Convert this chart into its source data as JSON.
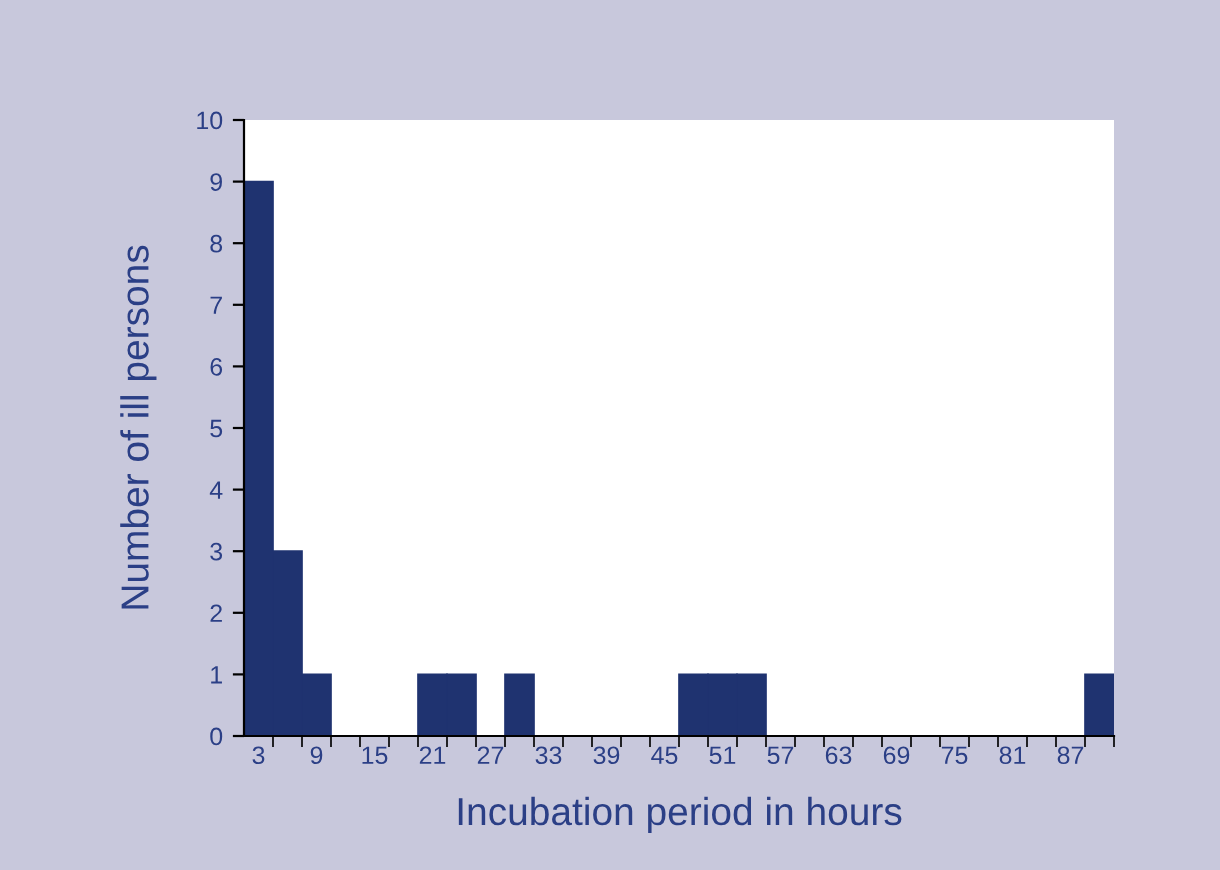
{
  "chart_data": {
    "type": "bar",
    "xlabel": "Incubation period in hours",
    "ylabel": "Number of ill persons",
    "categories": [
      "3",
      null,
      "9",
      null,
      "15",
      null,
      "21",
      null,
      "27",
      null,
      "33",
      null,
      "39",
      null,
      "45",
      null,
      "51",
      null,
      "57",
      null,
      "63",
      null,
      "69",
      null,
      "75",
      null,
      "81",
      null,
      "87",
      null
    ],
    "values": [
      9,
      3,
      1,
      0,
      0,
      0,
      1,
      1,
      0,
      1,
      0,
      0,
      0,
      0,
      0,
      1,
      1,
      1,
      0,
      0,
      0,
      0,
      0,
      0,
      0,
      0,
      0,
      0,
      0,
      1
    ],
    "color": "#1f3370",
    "ylim": [
      0,
      10
    ],
    "yticks": [
      0,
      1,
      2,
      3,
      4,
      5,
      6,
      7,
      8,
      9,
      10
    ],
    "grid": false,
    "legend": false
  }
}
